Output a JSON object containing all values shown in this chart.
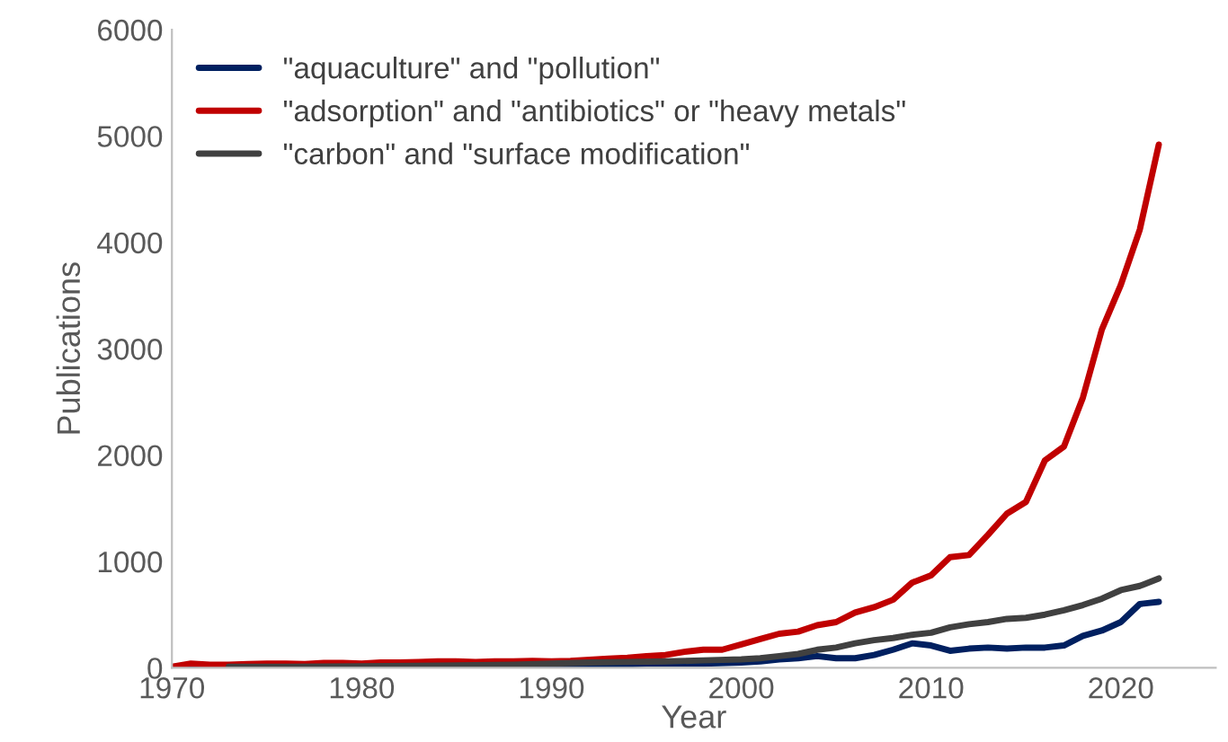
{
  "chart_data": {
    "type": "line",
    "xlabel": "Year",
    "ylabel": "Publications",
    "xlim": [
      1970,
      2025
    ],
    "xticks": [
      1970,
      1980,
      1990,
      2000,
      2010,
      2020
    ],
    "ylim": [
      0,
      6000
    ],
    "yticks": [
      0,
      1000,
      2000,
      3000,
      4000,
      5000,
      6000
    ],
    "grid": false,
    "legend": "top left",
    "marker": "none",
    "line_style": "solid",
    "series": [
      {
        "name": "\"aquaculture\" and \"pollution\"",
        "color": "#002060",
        "x": [
          1970,
          1974,
          1978,
          1982,
          1986,
          1988,
          1990,
          1992,
          1994,
          1995,
          1996,
          1998,
          2000,
          2001,
          2002,
          2003,
          2004,
          2005,
          2006,
          2007,
          2008,
          2009,
          2010,
          2011,
          2012,
          2013,
          2014,
          2015,
          2016,
          2017,
          2018,
          2019,
          2020,
          2021,
          2022
        ],
        "values": [
          0,
          0,
          0,
          10,
          10,
          10,
          20,
          20,
          30,
          40,
          40,
          40,
          50,
          60,
          80,
          90,
          110,
          90,
          90,
          120,
          170,
          230,
          210,
          160,
          180,
          190,
          180,
          190,
          190,
          210,
          300,
          350,
          430,
          600,
          620
        ]
      },
      {
        "name": "\"adsorption\" and \"antibiotics\" or \"heavy metals\"",
        "color": "#c00000",
        "x": [
          1970,
          1971,
          1972,
          1973,
          1974,
          1975,
          1976,
          1977,
          1978,
          1979,
          1980,
          1981,
          1982,
          1983,
          1984,
          1985,
          1986,
          1987,
          1988,
          1989,
          1990,
          1991,
          1992,
          1993,
          1994,
          1995,
          1996,
          1997,
          1998,
          1999,
          2000,
          2001,
          2002,
          2003,
          2004,
          2005,
          2006,
          2007,
          2008,
          2009,
          2010,
          2011,
          2012,
          2013,
          2014,
          2015,
          2016,
          2017,
          2018,
          2019,
          2020,
          2021,
          2022
        ],
        "values": [
          10,
          40,
          30,
          30,
          35,
          40,
          40,
          35,
          45,
          45,
          40,
          50,
          50,
          55,
          60,
          60,
          55,
          60,
          60,
          65,
          60,
          65,
          75,
          85,
          95,
          110,
          120,
          150,
          170,
          170,
          220,
          270,
          320,
          340,
          400,
          430,
          520,
          570,
          640,
          800,
          870,
          1040,
          1060,
          1250,
          1450,
          1560,
          1950,
          2080,
          2540,
          3180,
          3600,
          4120,
          4920
        ]
      },
      {
        "name": "\"carbon\" and \"surface modification\"",
        "color": "#404040",
        "x": [
          1973,
          1976,
          1980,
          1984,
          1988,
          1990,
          1992,
          1994,
          1996,
          1998,
          2000,
          2001,
          2002,
          2003,
          2004,
          2005,
          2006,
          2007,
          2008,
          2009,
          2010,
          2011,
          2012,
          2013,
          2014,
          2015,
          2016,
          2017,
          2018,
          2019,
          2020,
          2021,
          2022
        ],
        "values": [
          10,
          10,
          15,
          20,
          30,
          40,
          50,
          55,
          60,
          70,
          80,
          90,
          110,
          130,
          170,
          190,
          230,
          260,
          280,
          310,
          330,
          380,
          410,
          430,
          460,
          470,
          500,
          540,
          590,
          650,
          730,
          770,
          840
        ]
      }
    ]
  }
}
